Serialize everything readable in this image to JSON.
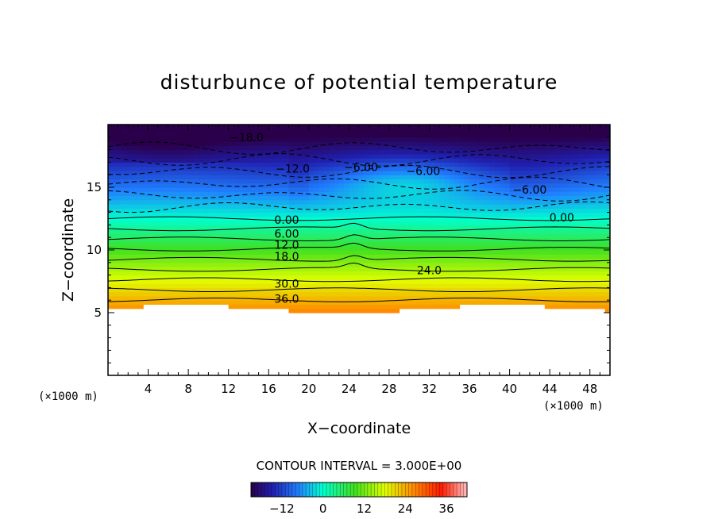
{
  "chart_data": {
    "type": "heatmap",
    "title": "disturbunce of potential temperature",
    "xlabel": "X−coordinate",
    "ylabel": "Z−coordinate",
    "x_unit_left": "(×1000 m)",
    "x_unit_right": "(×1000 m)",
    "xlim": [
      0,
      50
    ],
    "ylim": [
      0,
      20
    ],
    "x_ticks": [
      "4",
      "8",
      "12",
      "16",
      "20",
      "24",
      "28",
      "32",
      "36",
      "40",
      "44",
      "48"
    ],
    "x_tick_values": [
      4,
      8,
      12,
      16,
      20,
      24,
      28,
      32,
      36,
      40,
      44,
      48
    ],
    "y_ticks": [
      "5",
      "10",
      "15"
    ],
    "y_tick_values": [
      5,
      10,
      15
    ],
    "contour_interval_note": "CONTOUR INTERVAL = 3.000E+00",
    "contour_interval": 3.0,
    "value_range": [
      -21,
      42
    ],
    "colorbar": {
      "ticks": [
        "−12",
        "0",
        "12",
        "24",
        "36"
      ],
      "tick_values": [
        -12,
        0,
        12,
        24,
        36
      ],
      "range": [
        -21,
        42
      ]
    },
    "contour_labels": [
      {
        "text": "−18.0",
        "x": 13.8,
        "z": 19.0
      },
      {
        "text": "−12.0",
        "x": 18.4,
        "z": 16.5
      },
      {
        "text": "−6.00",
        "x": 25.2,
        "z": 16.6
      },
      {
        "text": "−6.00",
        "x": 31.4,
        "z": 16.3
      },
      {
        "text": "−6.00",
        "x": 42.0,
        "z": 14.8
      },
      {
        "text": "0.00",
        "x": 17.8,
        "z": 12.4
      },
      {
        "text": "0.00",
        "x": 45.2,
        "z": 12.6
      },
      {
        "text": "6.00",
        "x": 17.8,
        "z": 11.3
      },
      {
        "text": "12.0",
        "x": 17.8,
        "z": 10.4
      },
      {
        "text": "18.0",
        "x": 17.8,
        "z": 9.5
      },
      {
        "text": "24.0",
        "x": 32.0,
        "z": 8.4
      },
      {
        "text": "30.0",
        "x": 17.8,
        "z": 7.3
      },
      {
        "text": "36.0",
        "x": 17.8,
        "z": 6.1
      }
    ],
    "colors": {
      "very_negative": "#3a0078",
      "negative": "#2060ff",
      "zero": "#00ffd0",
      "positive_mid": "#e0ff00",
      "positive_high": "#ff1a00",
      "max": "#ffb0b0"
    }
  }
}
